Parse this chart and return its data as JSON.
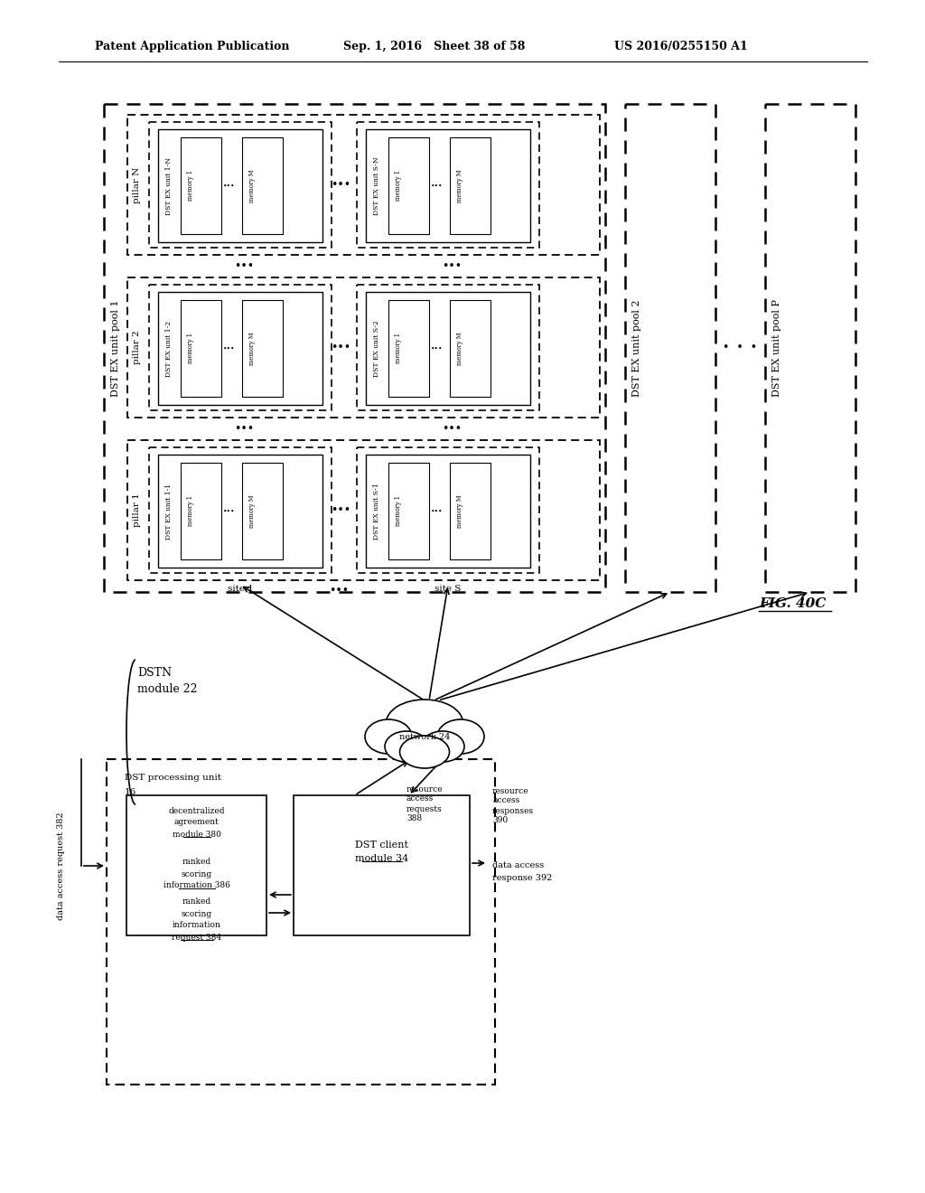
{
  "header_left": "Patent Application Publication",
  "header_mid": "Sep. 1, 2016   Sheet 38 of 58",
  "header_right": "US 2016/0255150 A1",
  "fig_label": "FIG. 40C",
  "bg_color": "#ffffff"
}
